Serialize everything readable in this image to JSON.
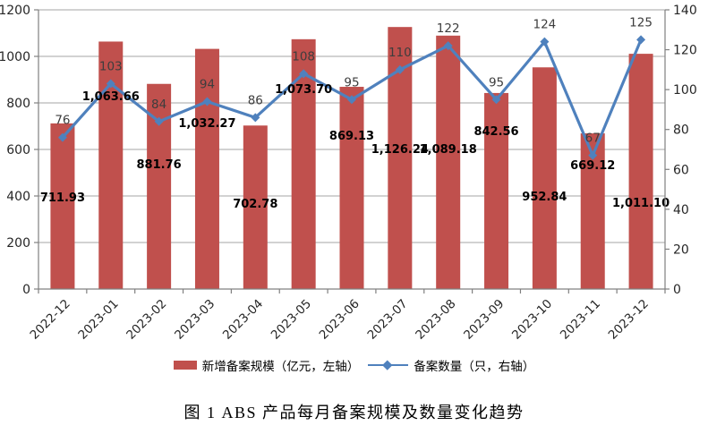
{
  "page": {
    "caption": "图 1  ABS 产品每月备案规模及数量变化趋势"
  },
  "chart_data": {
    "type": "bar+line combo",
    "categories": [
      "2022-12",
      "2023-01",
      "2023-02",
      "2023-03",
      "2023-04",
      "2023-05",
      "2023-06",
      "2023-07",
      "2023-08",
      "2023-09",
      "2023-10",
      "2023-11",
      "2023-12"
    ],
    "series": [
      {
        "name": "新增备案规模（亿元，左轴）",
        "type": "bar",
        "axis": "left",
        "color": "#c0504d",
        "values": [
          711.93,
          1063.66,
          881.76,
          1032.27,
          702.78,
          1073.7,
          869.13,
          1126.24,
          1089.18,
          842.56,
          952.84,
          669.12,
          1011.1
        ],
        "value_labels": [
          "711.93",
          "1,063.66",
          "881.76",
          "1,032.27",
          "702.78",
          "1,073.70",
          "869.13",
          "1,126.24",
          "1,089.18",
          "842.56",
          "952.84",
          "669.12",
          "1,011.10"
        ]
      },
      {
        "name": "备案数量（只，右轴）",
        "type": "line",
        "axis": "right",
        "color": "#4f81bd",
        "values": [
          76,
          103,
          84,
          94,
          86,
          108,
          95,
          110,
          122,
          95,
          124,
          67,
          125
        ],
        "value_labels": [
          "76",
          "103",
          "84",
          "94",
          "86",
          "108",
          "95",
          "110",
          "122",
          "95",
          "124",
          "67",
          "125"
        ]
      }
    ],
    "left_axis": {
      "min": 0,
      "max": 1200,
      "step": 200,
      "tick_labels": [
        "0",
        "200",
        "400",
        "600",
        "800",
        "1000",
        "1200"
      ]
    },
    "right_axis": {
      "min": 0,
      "max": 140,
      "step": 20,
      "tick_labels": [
        "0",
        "20",
        "40",
        "60",
        "80",
        "100",
        "120",
        "140"
      ]
    },
    "grid": true,
    "grid_color": "#a6a6a6",
    "axis_color": "#808080",
    "legend_position": "bottom",
    "bar_label_center_y": [
      220,
      107,
      183,
      137,
      227,
      99,
      151,
      166,
      166,
      146,
      219,
      184,
      226
    ],
    "line_label_offset_above_marker": 20
  }
}
